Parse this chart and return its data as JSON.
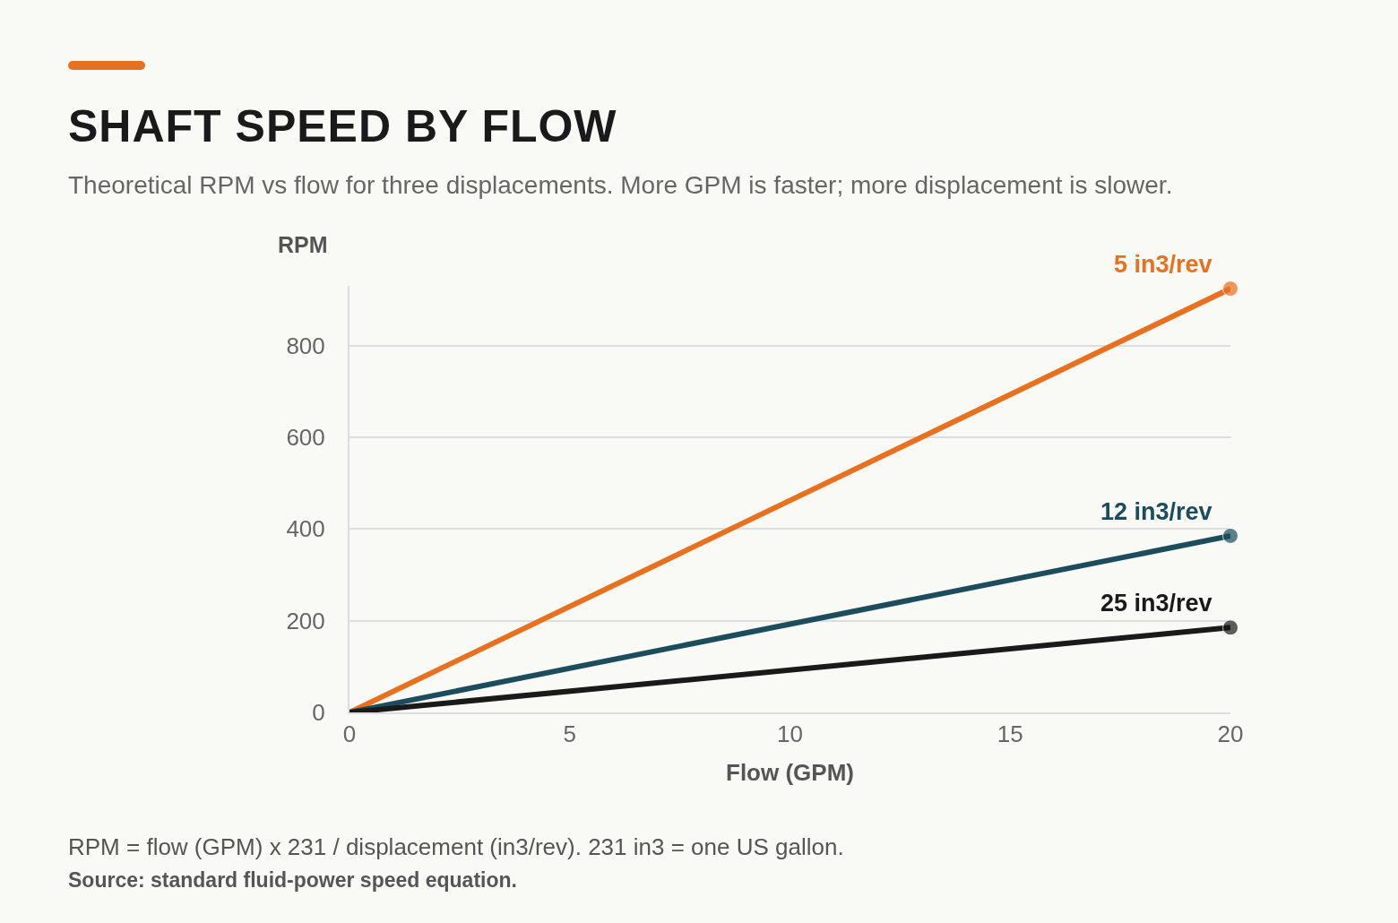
{
  "chart_data": {
    "type": "line",
    "title": "SHAFT SPEED BY FLOW",
    "subtitle": "Theoretical RPM vs flow for three displacements. More GPM is faster; more displacement is slower.",
    "xlabel": "Flow (GPM)",
    "ylabel": "RPM",
    "x": [
      0,
      20
    ],
    "series": [
      {
        "name": "5 in3/rev",
        "color": "#e8711f",
        "values": [
          0,
          924
        ]
      },
      {
        "name": "12 in3/rev",
        "color": "#1b4d5c",
        "values": [
          0,
          385
        ]
      },
      {
        "name": "25 in3/rev",
        "color": "#1a1a1a",
        "values": [
          0,
          185
        ]
      }
    ],
    "xlim": [
      0,
      20
    ],
    "xticks": [
      0,
      5,
      10,
      15,
      20
    ],
    "ylim": [
      0,
      930
    ],
    "yticks": [
      0,
      200,
      400,
      600,
      800
    ],
    "grid": "y",
    "legend": false,
    "marker": "circle",
    "line_style": "solid",
    "annotations": [
      "RPM = flow (GPM) x 231 / displacement (in3/rev). 231 in3 = one US gallon.",
      "Source: standard fluid-power speed equation."
    ]
  }
}
